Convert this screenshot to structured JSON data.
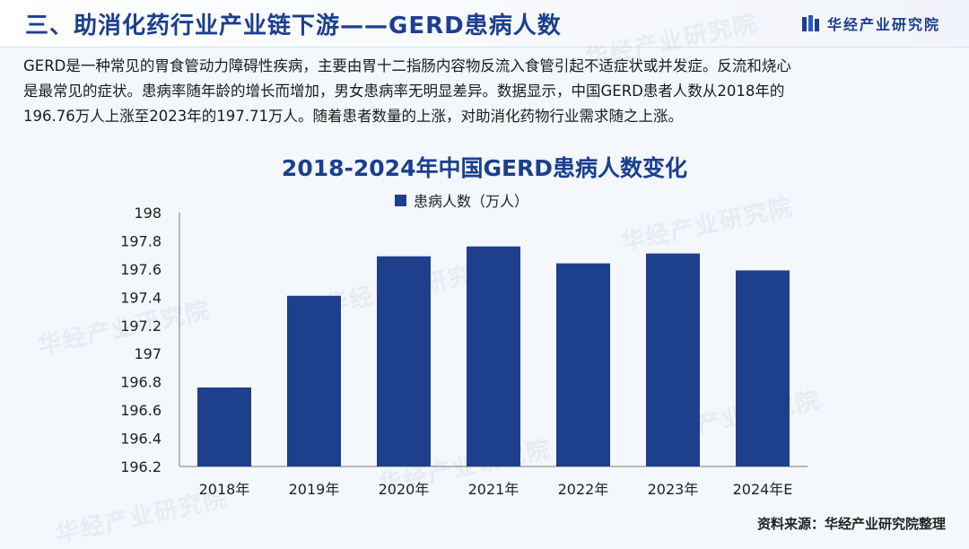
{
  "header": {
    "title": "三、助消化药行业产业链下游——GERD患病人数",
    "brand": "华经产业研究院"
  },
  "intro": {
    "line1": "GERD是一种常见的胃食管动力障碍性疾病，主要由胃十二指肠内容物反流入食管引起不适症状或并发症。反流和烧心",
    "line2": "是最常见的症状。患病率随年龄的增长而增加，男女患病率无明显差异。数据显示，中国GERD患者人数从2018年的",
    "line3": "196.76万人上涨至2023年的197.71万人。随着患者数量的上涨，对助消化药物行业需求随之上涨。"
  },
  "watermark_text": "华经产业研究院",
  "chart_data": {
    "type": "bar",
    "title": "2018-2024年中国GERD患病人数变化",
    "categories": [
      "2018年",
      "2019年",
      "2020年",
      "2021年",
      "2022年",
      "2023年",
      "2024年E"
    ],
    "series": [
      {
        "name": "患病人数（万人）",
        "values": [
          196.76,
          197.41,
          197.69,
          197.76,
          197.64,
          197.71,
          197.59
        ],
        "color": "#1e3f8c"
      }
    ],
    "ylim": [
      196.2,
      198
    ],
    "yticks": [
      "196.2",
      "196.4",
      "196.6",
      "196.8",
      "197",
      "197.2",
      "197.4",
      "197.6",
      "197.8",
      "198"
    ],
    "grid": false,
    "legend_position": "top"
  },
  "footer": {
    "source": "资料来源：华经产业研究院整理"
  },
  "colors": {
    "accent": "#1b3f8f",
    "bar": "#1e3f8c",
    "background": "#f4f7fb"
  }
}
